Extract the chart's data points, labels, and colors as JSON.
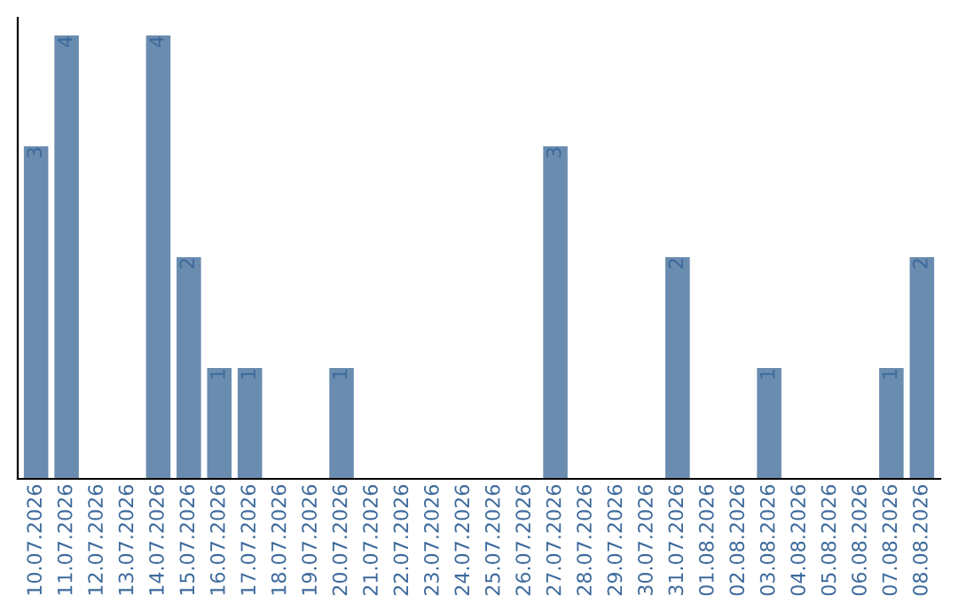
{
  "chart_data": {
    "type": "bar",
    "categories": [
      "10.07.2026",
      "11.07.2026",
      "12.07.2026",
      "13.07.2026",
      "14.07.2026",
      "15.07.2026",
      "16.07.2026",
      "17.07.2026",
      "18.07.2026",
      "19.07.2026",
      "20.07.2026",
      "21.07.2026",
      "22.07.2026",
      "23.07.2026",
      "24.07.2026",
      "25.07.2026",
      "26.07.2026",
      "27.07.2026",
      "28.07.2026",
      "29.07.2026",
      "30.07.2026",
      "31.07.2026",
      "01.08.2026",
      "02.08.2026",
      "03.08.2026",
      "04.08.2026",
      "05.08.2026",
      "06.08.2026",
      "07.08.2026",
      "08.08.2026"
    ],
    "values": [
      3,
      4,
      0,
      0,
      4,
      2,
      1,
      1,
      0,
      0,
      1,
      0,
      0,
      0,
      0,
      0,
      0,
      3,
      0,
      0,
      0,
      2,
      0,
      0,
      1,
      0,
      0,
      0,
      1,
      2
    ],
    "value_labels": [
      "3",
      "4",
      null,
      null,
      "4",
      "2",
      "1",
      "1",
      null,
      null,
      "1",
      null,
      null,
      null,
      null,
      null,
      null,
      "3",
      null,
      null,
      null,
      "2",
      null,
      null,
      "1",
      null,
      null,
      null,
      "1",
      "2"
    ],
    "color": "#6a8caf",
    "grid": false,
    "legend": false
  }
}
